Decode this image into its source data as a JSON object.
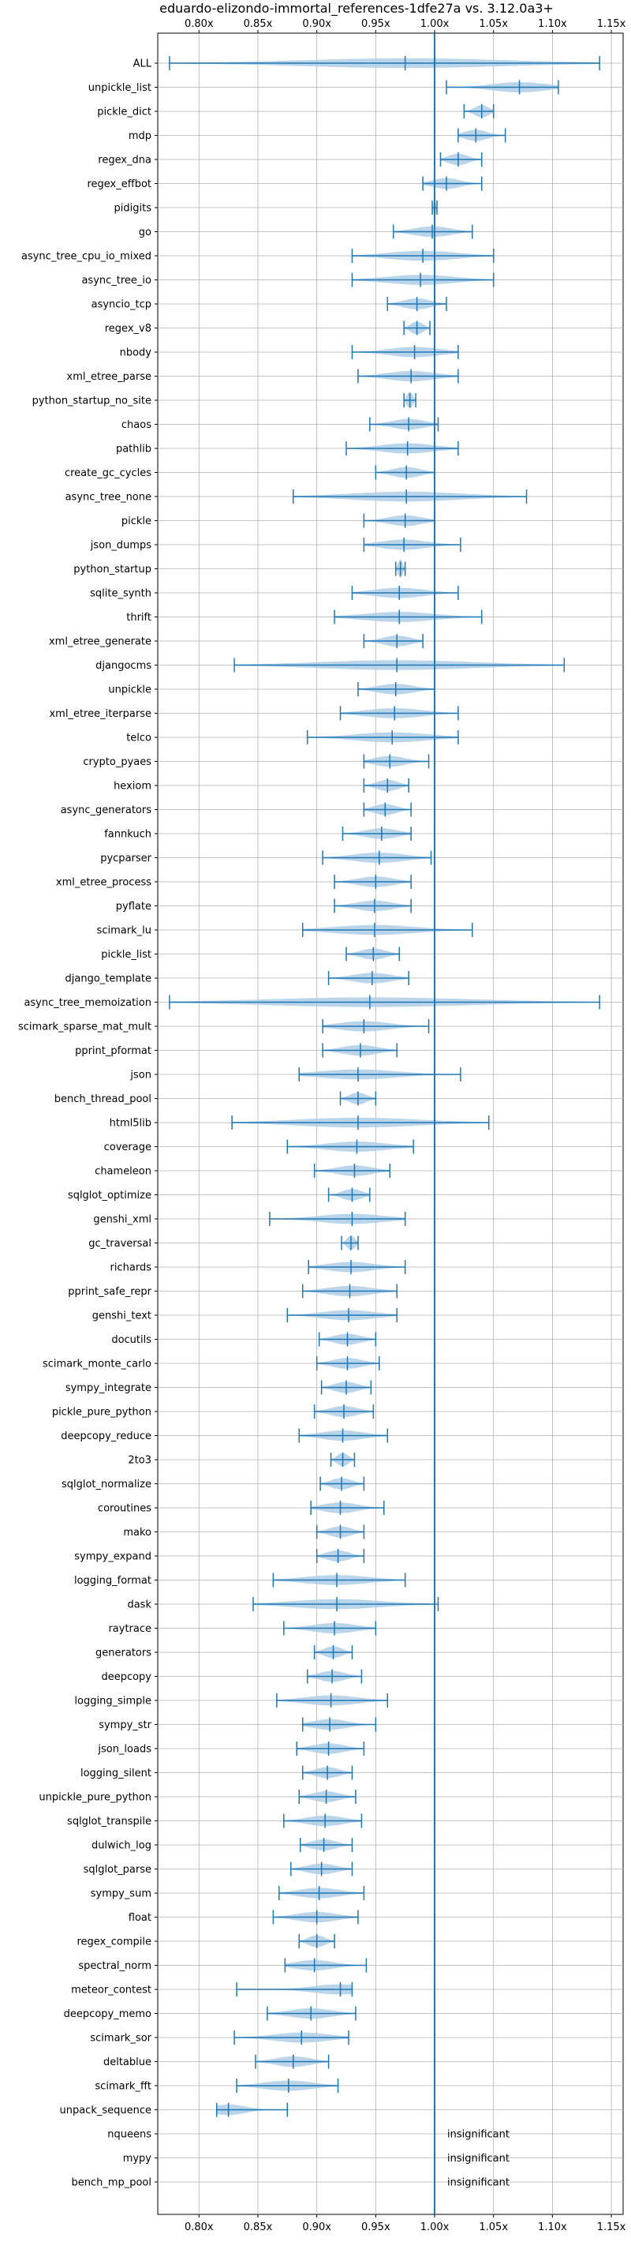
{
  "chart_data": {
    "type": "violin",
    "title": "eduardo-elizondo-immortal_references-1dfe27a vs. 3.12.0a3+",
    "xlabel": "",
    "ylabel": "",
    "xlim": [
      0.765,
      1.16
    ],
    "x_ticks": [
      0.8,
      0.85,
      0.9,
      0.95,
      1.0,
      1.05,
      1.1,
      1.15
    ],
    "x_tick_labels": [
      "0.80x",
      "0.85x",
      "0.90x",
      "0.95x",
      "1.00x",
      "1.05x",
      "1.10x",
      "1.15x"
    ],
    "reference_line": 1.0,
    "grid": true,
    "colors": {
      "line": "#1f77b4",
      "fill": "#aecde6"
    },
    "insignificant_label": "insignificant",
    "benchmarks": [
      {
        "name": "ALL",
        "min": 0.775,
        "max": 1.14,
        "mean": 0.975
      },
      {
        "name": "unpickle_list",
        "min": 1.01,
        "max": 1.105,
        "mean": 1.072
      },
      {
        "name": "pickle_dict",
        "min": 1.025,
        "max": 1.05,
        "mean": 1.04
      },
      {
        "name": "mdp",
        "min": 1.02,
        "max": 1.06,
        "mean": 1.035
      },
      {
        "name": "regex_dna",
        "min": 1.005,
        "max": 1.04,
        "mean": 1.02
      },
      {
        "name": "regex_effbot",
        "min": 0.99,
        "max": 1.04,
        "mean": 1.01
      },
      {
        "name": "pidigits",
        "min": 0.998,
        "max": 1.002,
        "mean": 1.0
      },
      {
        "name": "go",
        "min": 0.965,
        "max": 1.032,
        "mean": 0.998
      },
      {
        "name": "async_tree_cpu_io_mixed",
        "min": 0.93,
        "max": 1.05,
        "mean": 0.99
      },
      {
        "name": "async_tree_io",
        "min": 0.93,
        "max": 1.05,
        "mean": 0.988
      },
      {
        "name": "asyncio_tcp",
        "min": 0.96,
        "max": 1.01,
        "mean": 0.985
      },
      {
        "name": "regex_v8",
        "min": 0.974,
        "max": 0.996,
        "mean": 0.985
      },
      {
        "name": "nbody",
        "min": 0.93,
        "max": 1.02,
        "mean": 0.983
      },
      {
        "name": "xml_etree_parse",
        "min": 0.935,
        "max": 1.02,
        "mean": 0.98
      },
      {
        "name": "python_startup_no_site",
        "min": 0.974,
        "max": 0.984,
        "mean": 0.979
      },
      {
        "name": "chaos",
        "min": 0.945,
        "max": 1.003,
        "mean": 0.978
      },
      {
        "name": "pathlib",
        "min": 0.925,
        "max": 1.02,
        "mean": 0.977
      },
      {
        "name": "create_gc_cycles",
        "min": 0.95,
        "max": 1.0,
        "mean": 0.976
      },
      {
        "name": "async_tree_none",
        "min": 0.88,
        "max": 1.078,
        "mean": 0.976
      },
      {
        "name": "pickle",
        "min": 0.94,
        "max": 1.0,
        "mean": 0.975
      },
      {
        "name": "json_dumps",
        "min": 0.94,
        "max": 1.022,
        "mean": 0.974
      },
      {
        "name": "python_startup",
        "min": 0.967,
        "max": 0.975,
        "mean": 0.971
      },
      {
        "name": "sqlite_synth",
        "min": 0.93,
        "max": 1.02,
        "mean": 0.97
      },
      {
        "name": "thrift",
        "min": 0.915,
        "max": 1.04,
        "mean": 0.97
      },
      {
        "name": "xml_etree_generate",
        "min": 0.94,
        "max": 0.99,
        "mean": 0.968
      },
      {
        "name": "djangocms",
        "min": 0.83,
        "max": 1.11,
        "mean": 0.968
      },
      {
        "name": "unpickle",
        "min": 0.935,
        "max": 1.0,
        "mean": 0.967
      },
      {
        "name": "xml_etree_iterparse",
        "min": 0.92,
        "max": 1.02,
        "mean": 0.966
      },
      {
        "name": "telco",
        "min": 0.892,
        "max": 1.02,
        "mean": 0.964
      },
      {
        "name": "crypto_pyaes",
        "min": 0.94,
        "max": 0.995,
        "mean": 0.962
      },
      {
        "name": "hexiom",
        "min": 0.94,
        "max": 0.978,
        "mean": 0.96
      },
      {
        "name": "async_generators",
        "min": 0.94,
        "max": 0.98,
        "mean": 0.958
      },
      {
        "name": "fannkuch",
        "min": 0.922,
        "max": 0.98,
        "mean": 0.955
      },
      {
        "name": "pycparser",
        "min": 0.905,
        "max": 0.997,
        "mean": 0.953
      },
      {
        "name": "xml_etree_process",
        "min": 0.915,
        "max": 0.98,
        "mean": 0.95
      },
      {
        "name": "pyflate",
        "min": 0.915,
        "max": 0.98,
        "mean": 0.949
      },
      {
        "name": "scimark_lu",
        "min": 0.888,
        "max": 1.032,
        "mean": 0.949
      },
      {
        "name": "pickle_list",
        "min": 0.925,
        "max": 0.97,
        "mean": 0.948
      },
      {
        "name": "django_template",
        "min": 0.91,
        "max": 0.978,
        "mean": 0.947
      },
      {
        "name": "async_tree_memoization",
        "min": 0.775,
        "max": 1.14,
        "mean": 0.945
      },
      {
        "name": "scimark_sparse_mat_mult",
        "min": 0.905,
        "max": 0.995,
        "mean": 0.94
      },
      {
        "name": "pprint_pformat",
        "min": 0.905,
        "max": 0.968,
        "mean": 0.937
      },
      {
        "name": "json",
        "min": 0.885,
        "max": 1.022,
        "mean": 0.935
      },
      {
        "name": "bench_thread_pool",
        "min": 0.92,
        "max": 0.95,
        "mean": 0.935
      },
      {
        "name": "html5lib",
        "min": 0.828,
        "max": 1.046,
        "mean": 0.935
      },
      {
        "name": "coverage",
        "min": 0.875,
        "max": 0.982,
        "mean": 0.934
      },
      {
        "name": "chameleon",
        "min": 0.898,
        "max": 0.962,
        "mean": 0.932
      },
      {
        "name": "sqlglot_optimize",
        "min": 0.91,
        "max": 0.945,
        "mean": 0.93
      },
      {
        "name": "genshi_xml",
        "min": 0.86,
        "max": 0.975,
        "mean": 0.93
      },
      {
        "name": "gc_traversal",
        "min": 0.921,
        "max": 0.935,
        "mean": 0.929
      },
      {
        "name": "richards",
        "min": 0.893,
        "max": 0.975,
        "mean": 0.929
      },
      {
        "name": "pprint_safe_repr",
        "min": 0.888,
        "max": 0.968,
        "mean": 0.928
      },
      {
        "name": "genshi_text",
        "min": 0.875,
        "max": 0.968,
        "mean": 0.927
      },
      {
        "name": "docutils",
        "min": 0.902,
        "max": 0.95,
        "mean": 0.926
      },
      {
        "name": "scimark_monte_carlo",
        "min": 0.9,
        "max": 0.953,
        "mean": 0.926
      },
      {
        "name": "sympy_integrate",
        "min": 0.904,
        "max": 0.946,
        "mean": 0.925
      },
      {
        "name": "pickle_pure_python",
        "min": 0.898,
        "max": 0.948,
        "mean": 0.923
      },
      {
        "name": "deepcopy_reduce",
        "min": 0.885,
        "max": 0.96,
        "mean": 0.922
      },
      {
        "name": "2to3",
        "min": 0.912,
        "max": 0.932,
        "mean": 0.922
      },
      {
        "name": "sqlglot_normalize",
        "min": 0.903,
        "max": 0.94,
        "mean": 0.921
      },
      {
        "name": "coroutines",
        "min": 0.895,
        "max": 0.957,
        "mean": 0.92
      },
      {
        "name": "mako",
        "min": 0.9,
        "max": 0.94,
        "mean": 0.92
      },
      {
        "name": "sympy_expand",
        "min": 0.9,
        "max": 0.94,
        "mean": 0.918
      },
      {
        "name": "logging_format",
        "min": 0.863,
        "max": 0.975,
        "mean": 0.917
      },
      {
        "name": "dask",
        "min": 0.846,
        "max": 1.003,
        "mean": 0.917
      },
      {
        "name": "raytrace",
        "min": 0.872,
        "max": 0.95,
        "mean": 0.915
      },
      {
        "name": "generators",
        "min": 0.898,
        "max": 0.93,
        "mean": 0.914
      },
      {
        "name": "deepcopy",
        "min": 0.892,
        "max": 0.938,
        "mean": 0.913
      },
      {
        "name": "logging_simple",
        "min": 0.866,
        "max": 0.96,
        "mean": 0.912
      },
      {
        "name": "sympy_str",
        "min": 0.888,
        "max": 0.95,
        "mean": 0.911
      },
      {
        "name": "json_loads",
        "min": 0.883,
        "max": 0.94,
        "mean": 0.91
      },
      {
        "name": "logging_silent",
        "min": 0.888,
        "max": 0.93,
        "mean": 0.909
      },
      {
        "name": "unpickle_pure_python",
        "min": 0.885,
        "max": 0.933,
        "mean": 0.908
      },
      {
        "name": "sqlglot_transpile",
        "min": 0.872,
        "max": 0.938,
        "mean": 0.907
      },
      {
        "name": "dulwich_log",
        "min": 0.886,
        "max": 0.93,
        "mean": 0.906
      },
      {
        "name": "sqlglot_parse",
        "min": 0.878,
        "max": 0.93,
        "mean": 0.904
      },
      {
        "name": "sympy_sum",
        "min": 0.868,
        "max": 0.94,
        "mean": 0.902
      },
      {
        "name": "float",
        "min": 0.863,
        "max": 0.935,
        "mean": 0.9
      },
      {
        "name": "regex_compile",
        "min": 0.885,
        "max": 0.915,
        "mean": 0.9
      },
      {
        "name": "spectral_norm",
        "min": 0.873,
        "max": 0.942,
        "mean": 0.898
      },
      {
        "name": "meteor_contest",
        "min": 0.832,
        "max": 0.93,
        "mean": 0.92
      },
      {
        "name": "deepcopy_memo",
        "min": 0.858,
        "max": 0.933,
        "mean": 0.895
      },
      {
        "name": "scimark_sor",
        "min": 0.83,
        "max": 0.927,
        "mean": 0.887
      },
      {
        "name": "deltablue",
        "min": 0.848,
        "max": 0.91,
        "mean": 0.88
      },
      {
        "name": "scimark_fft",
        "min": 0.832,
        "max": 0.918,
        "mean": 0.876
      },
      {
        "name": "unpack_sequence",
        "min": 0.815,
        "max": 0.875,
        "mean": 0.825
      },
      {
        "name": "nqueens",
        "insignificant": true
      },
      {
        "name": "mypy",
        "insignificant": true
      },
      {
        "name": "bench_mp_pool",
        "insignificant": true
      }
    ]
  }
}
